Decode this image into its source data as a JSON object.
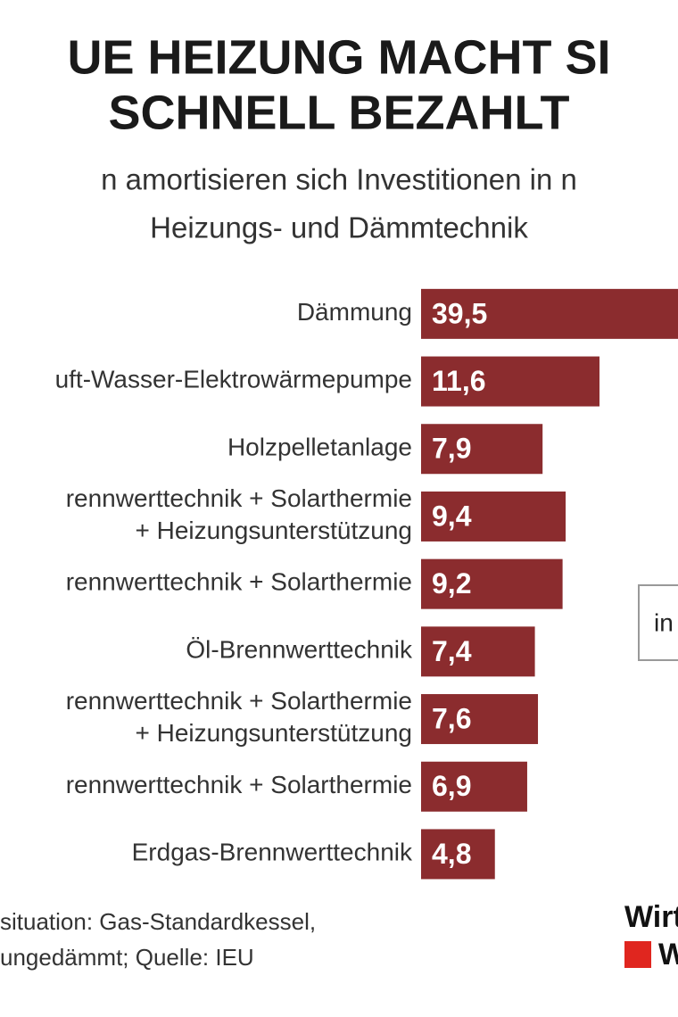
{
  "chart_data": {
    "type": "bar",
    "orientation": "horizontal",
    "title": [
      "UE HEIZUNG MACHT SI",
      "SCHNELL BEZAHLT"
    ],
    "subtitle": [
      "n amortisieren sich Investitionen in n",
      "Heizungs- und Dämmtechnik"
    ],
    "categories": [
      "Dämmung",
      "uft-Wasser-Elektrowärmepumpe",
      "Holzpelletanlage",
      "rennwerttechnik + Solarthermie\n+ Heizungsunterstützung",
      "rennwerttechnik + Solarthermie",
      "Öl-Brennwerttechnik",
      "rennwerttechnik + Solarthermie\n+ Heizungsunterstützung",
      "rennwerttechnik + Solarthermie",
      "Erdgas-Brennwerttechnik"
    ],
    "values": [
      39.5,
      11.6,
      7.9,
      9.4,
      9.2,
      7.4,
      7.6,
      6.9,
      4.8
    ],
    "value_labels": [
      "39,5",
      "11,6",
      "7,9",
      "9,4",
      "9,2",
      "7,4",
      "7,6",
      "6,9",
      "4,8"
    ],
    "color": "#8b2c2e",
    "unit_box": "in",
    "footnote": [
      "situation: Gas-Standardkessel,",
      "ungedämmt; Quelle: IEU"
    ],
    "logo": [
      "Wirt",
      "W"
    ]
  }
}
